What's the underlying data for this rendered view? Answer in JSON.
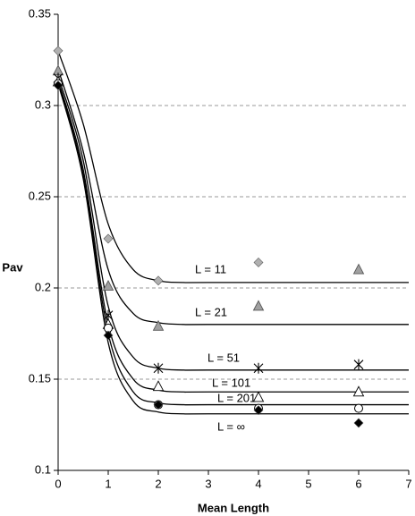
{
  "chart_data": {
    "type": "scatter",
    "x_label": "Mean Length",
    "y_label": "Pav",
    "xlim": [
      0,
      7
    ],
    "xticks": [
      0,
      1,
      2,
      3,
      4,
      5,
      6,
      7
    ],
    "ylim": [
      0.1,
      0.35
    ],
    "yticks": [
      0.1,
      0.15,
      0.2,
      0.25,
      0.3,
      0.35
    ],
    "grid": true,
    "x": [
      0,
      1,
      2,
      4,
      6
    ],
    "fit_x": [
      0,
      0.5,
      1,
      1.5,
      2,
      2.5,
      3,
      7
    ],
    "series": [
      {
        "name": "L = 11",
        "marker": "diamond",
        "color": "#b0b0b0",
        "values": [
          0.33,
          0.227,
          0.204,
          0.214,
          null
        ],
        "fit": [
          0.33,
          0.29,
          0.235,
          0.21,
          0.204,
          0.203,
          0.203,
          0.203
        ]
      },
      {
        "name": "L = 21",
        "marker": "triangle",
        "color": "#a0a0a0",
        "values": [
          0.319,
          0.201,
          0.179,
          0.19,
          0.21
        ],
        "fit": [
          0.32,
          0.275,
          0.21,
          0.186,
          0.181,
          0.18,
          0.18,
          0.18
        ]
      },
      {
        "name": "L = 51",
        "marker": "asterisk",
        "color": "#000000",
        "values": [
          0.315,
          0.185,
          0.156,
          0.156,
          0.158
        ],
        "fit": [
          0.316,
          0.27,
          0.19,
          0.162,
          0.156,
          0.155,
          0.155,
          0.155
        ]
      },
      {
        "name": "L = 101",
        "marker": "open-triangle",
        "color": "#000000",
        "values": [
          0.313,
          0.18,
          0.146,
          0.14,
          0.143
        ],
        "fit": [
          0.314,
          0.265,
          0.18,
          0.15,
          0.144,
          0.143,
          0.143,
          0.143
        ]
      },
      {
        "name": "L = 201",
        "marker": "open-circle",
        "color": "#000000",
        "values": [
          0.312,
          0.178,
          0.136,
          0.134,
          0.134
        ],
        "fit": [
          0.313,
          0.262,
          0.175,
          0.143,
          0.137,
          0.136,
          0.136,
          0.136
        ]
      },
      {
        "name": "L = ∞",
        "marker": "diamond",
        "color": "#000000",
        "values": [
          0.311,
          0.174,
          0.136,
          0.133,
          0.126
        ],
        "fit": [
          0.312,
          0.26,
          0.17,
          0.138,
          0.132,
          0.131,
          0.131,
          0.131
        ]
      }
    ]
  }
}
